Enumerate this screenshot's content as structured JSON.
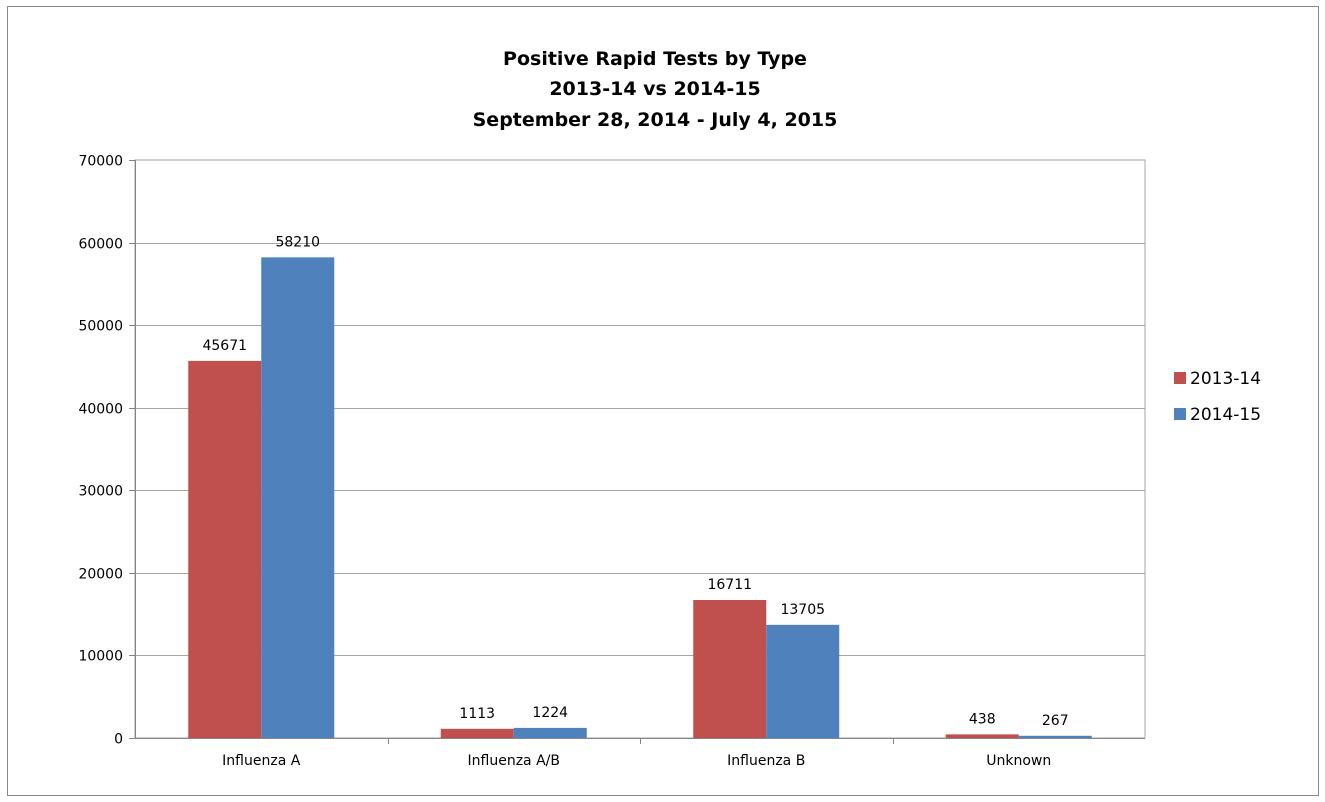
{
  "chart_data": {
    "type": "bar",
    "title": [
      "Positive Rapid Tests by Type",
      "2013-14 vs 2014-15",
      "September 28, 2014 - July 4, 2015"
    ],
    "xlabel": "",
    "ylabel": "",
    "categories": [
      "Influenza A",
      "Influenza A/B",
      "Influenza B",
      "Unknown"
    ],
    "series": [
      {
        "name": "2013-14",
        "color": "#C0504D",
        "values": [
          45671,
          1113,
          16711,
          438
        ]
      },
      {
        "name": "2014-15",
        "color": "#4F81BD",
        "values": [
          58210,
          1224,
          13705,
          267
        ]
      }
    ],
    "ylim": [
      0,
      70000
    ],
    "yticks": [
      0,
      10000,
      20000,
      30000,
      40000,
      50000,
      60000,
      70000
    ],
    "grid": true,
    "legend_position": "right",
    "data_labels": true
  }
}
